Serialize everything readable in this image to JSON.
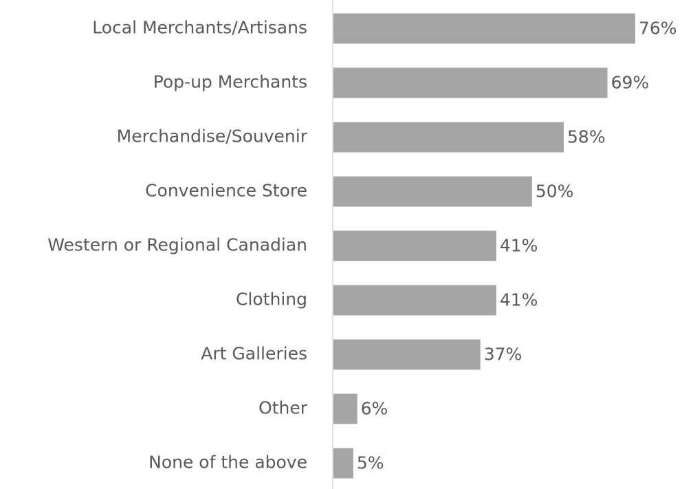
{
  "chart_data": {
    "type": "bar",
    "orientation": "horizontal",
    "categories": [
      "Local Merchants/Artisans",
      "Pop-up Merchants",
      "Merchandise/Souvenir",
      "Convenience Store",
      "Western or Regional Canadian",
      "Clothing",
      "Art Galleries",
      "Other",
      "None of the above"
    ],
    "values": [
      76,
      69,
      58,
      50,
      41,
      41,
      37,
      6,
      5
    ],
    "value_labels": [
      "76%",
      "69%",
      "58%",
      "50%",
      "41%",
      "41%",
      "37%",
      "6%",
      "5%"
    ],
    "color": "#a5a5a5"
  }
}
